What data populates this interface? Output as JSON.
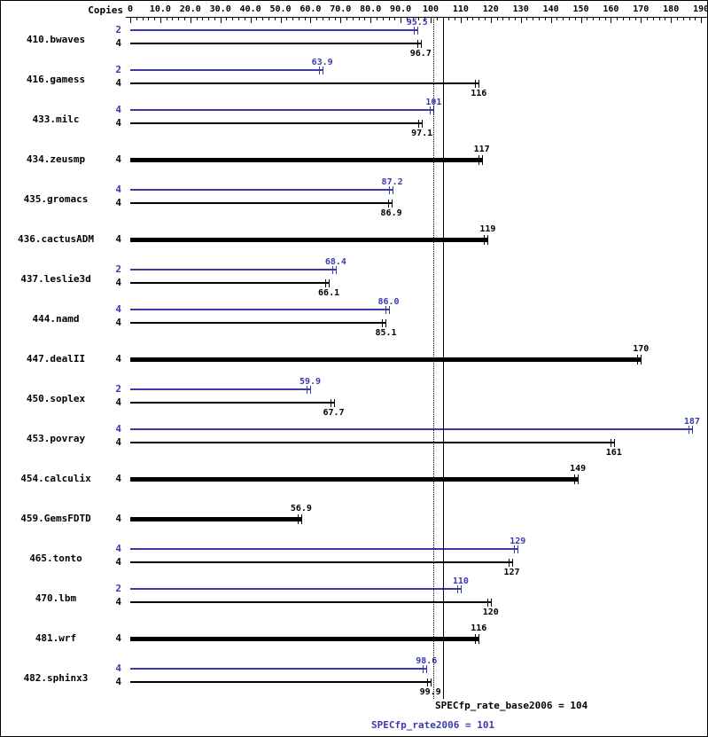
{
  "header": {
    "copies_label": "Copies"
  },
  "summary": {
    "base_label": "SPECfp_rate_base2006 = 104",
    "peak_label": "SPECfp_rate2006 = 101"
  },
  "chart_data": {
    "type": "bar",
    "orientation": "horizontal",
    "title": "",
    "xlabel": "",
    "ylabel": "Copies",
    "xlim": [
      0,
      190
    ],
    "minor_tick_step": 2,
    "x_tick_values": [
      0,
      10,
      20,
      30,
      40,
      50,
      60,
      70,
      80,
      90,
      100,
      110,
      120,
      130,
      140,
      150,
      160,
      170,
      180,
      190
    ],
    "x_ticks": [
      "0",
      "10.0",
      "20.0",
      "30.0",
      "40.0",
      "50.0",
      "60.0",
      "70.0",
      "80.0",
      "90.0",
      "100",
      "110",
      "120",
      "130",
      "140",
      "150",
      "160",
      "170",
      "180",
      "190"
    ],
    "grid": false,
    "legend_position": "none",
    "series_colors": {
      "peak": "#3a3aad",
      "base": "#000000"
    },
    "reference_lines": [
      {
        "name": "base",
        "value": 104,
        "style": "solid",
        "label": "SPECfp_rate_base2006 = 104"
      },
      {
        "name": "peak",
        "value": 101,
        "style": "dotted",
        "label": "SPECfp_rate2006 = 101"
      }
    ],
    "benchmarks": [
      {
        "name": "410.bwaves",
        "peak": {
          "copies": 2,
          "value": 95.5,
          "label": "95.5"
        },
        "base": {
          "copies": 4,
          "value": 96.7,
          "label": "96.7"
        }
      },
      {
        "name": "416.gamess",
        "peak": {
          "copies": 2,
          "value": 63.9,
          "label": "63.9"
        },
        "base": {
          "copies": 4,
          "value": 116,
          "label": "116"
        }
      },
      {
        "name": "433.milc",
        "peak": {
          "copies": 4,
          "value": 101,
          "label": "101"
        },
        "base": {
          "copies": 4,
          "value": 97.1,
          "label": "97.1"
        }
      },
      {
        "name": "434.zeusmp",
        "peak": null,
        "base": {
          "copies": 4,
          "value": 117,
          "label": "117"
        }
      },
      {
        "name": "435.gromacs",
        "peak": {
          "copies": 4,
          "value": 87.2,
          "label": "87.2"
        },
        "base": {
          "copies": 4,
          "value": 86.9,
          "label": "86.9"
        }
      },
      {
        "name": "436.cactusADM",
        "peak": null,
        "base": {
          "copies": 4,
          "value": 119,
          "label": "119"
        }
      },
      {
        "name": "437.leslie3d",
        "peak": {
          "copies": 2,
          "value": 68.4,
          "label": "68.4"
        },
        "base": {
          "copies": 4,
          "value": 66.1,
          "label": "66.1"
        }
      },
      {
        "name": "444.namd",
        "peak": {
          "copies": 4,
          "value": 86.0,
          "label": "86.0"
        },
        "base": {
          "copies": 4,
          "value": 85.1,
          "label": "85.1"
        }
      },
      {
        "name": "447.dealII",
        "peak": null,
        "base": {
          "copies": 4,
          "value": 170,
          "label": "170"
        }
      },
      {
        "name": "450.soplex",
        "peak": {
          "copies": 2,
          "value": 59.9,
          "label": "59.9"
        },
        "base": {
          "copies": 4,
          "value": 67.7,
          "label": "67.7"
        }
      },
      {
        "name": "453.povray",
        "peak": {
          "copies": 4,
          "value": 187,
          "label": "187"
        },
        "base": {
          "copies": 4,
          "value": 161,
          "label": "161"
        }
      },
      {
        "name": "454.calculix",
        "peak": null,
        "base": {
          "copies": 4,
          "value": 149,
          "label": "149"
        }
      },
      {
        "name": "459.GemsFDTD",
        "peak": null,
        "base": {
          "copies": 4,
          "value": 56.9,
          "label": "56.9"
        }
      },
      {
        "name": "465.tonto",
        "peak": {
          "copies": 4,
          "value": 129,
          "label": "129"
        },
        "base": {
          "copies": 4,
          "value": 127,
          "label": "127"
        }
      },
      {
        "name": "470.lbm",
        "peak": {
          "copies": 2,
          "value": 110,
          "label": "110"
        },
        "base": {
          "copies": 4,
          "value": 120,
          "label": "120"
        }
      },
      {
        "name": "481.wrf",
        "peak": null,
        "base": {
          "copies": 4,
          "value": 116,
          "label": "116"
        }
      },
      {
        "name": "482.sphinx3",
        "peak": {
          "copies": 4,
          "value": 98.6,
          "label": "98.6"
        },
        "base": {
          "copies": 4,
          "value": 99.9,
          "label": "99.9"
        }
      }
    ]
  }
}
